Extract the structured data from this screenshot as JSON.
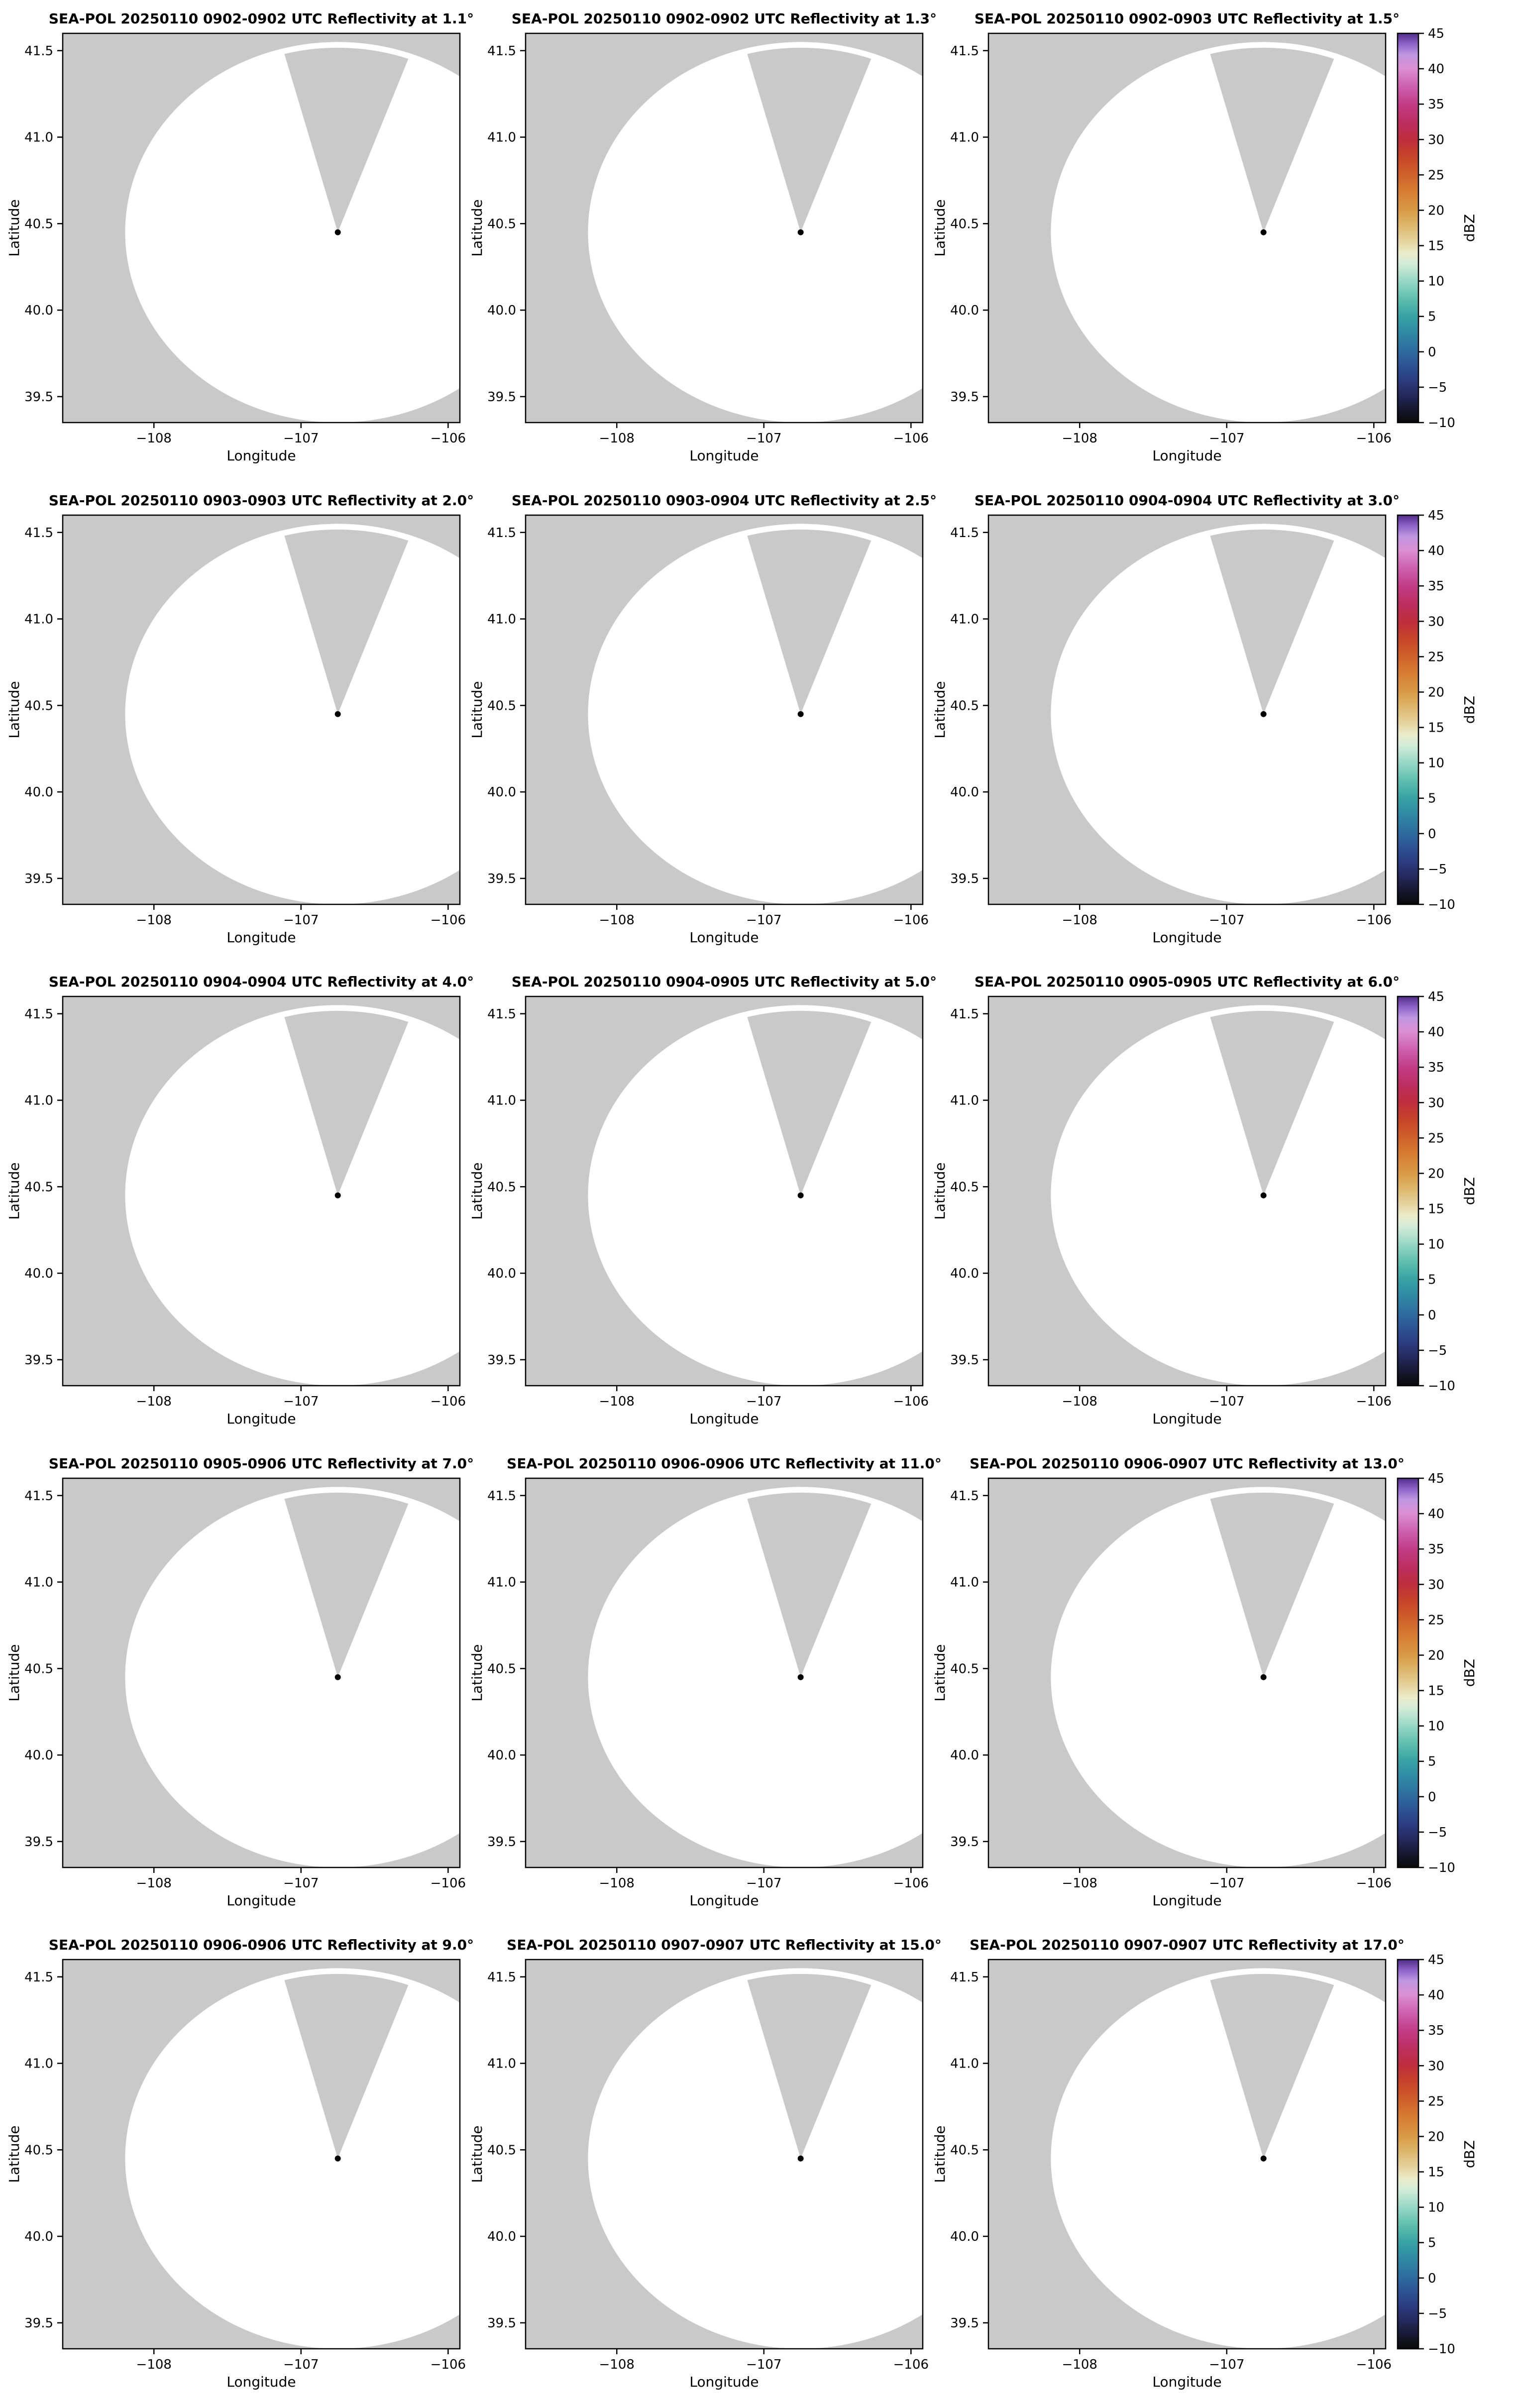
{
  "figure": {
    "background": "#ffffff",
    "outside_scan_color": "#c9c9c9",
    "scan_fill": "#ffffff",
    "blocked_wedge_color": "#c9c9c9",
    "radar_marker_color": "#000000",
    "axis_color": "#000000"
  },
  "chart_data": {
    "type": "heatmap",
    "subtype": "radar-ppi-grid",
    "rows": 5,
    "cols": 3,
    "xlabel": "Longitude",
    "ylabel": "Latitude",
    "x_ticks": [
      -108,
      -107,
      -106
    ],
    "x_tick_labels": [
      "−108",
      "−107",
      "−106"
    ],
    "y_ticks": [
      41.5,
      41.0,
      40.5,
      40.0,
      39.5
    ],
    "y_tick_labels": [
      "41.5",
      "41.0",
      "40.5",
      "40.0",
      "39.5"
    ],
    "xlim": [
      -108.62,
      -105.92
    ],
    "ylim": [
      39.35,
      41.6
    ],
    "radar_location": {
      "lon": -106.75,
      "lat": 40.45
    },
    "scan_radius_deg_lat": 1.1,
    "blocked_sector": {
      "azimuth_start_deg": -15,
      "azimuth_end_deg": 20,
      "radius_fraction": 0.97
    },
    "panels": [
      {
        "title": "SEA-POL 20250110 0902-0902 UTC Reflectivity at 1.1°",
        "time": "0902-0902",
        "elevation": "1.1°"
      },
      {
        "title": "SEA-POL 20250110 0902-0902 UTC Reflectivity at 1.3°",
        "time": "0902-0902",
        "elevation": "1.3°"
      },
      {
        "title": "SEA-POL 20250110 0902-0903 UTC Reflectivity at 1.5°",
        "time": "0902-0903",
        "elevation": "1.5°"
      },
      {
        "title": "SEA-POL 20250110 0903-0903 UTC Reflectivity at 2.0°",
        "time": "0903-0903",
        "elevation": "2.0°"
      },
      {
        "title": "SEA-POL 20250110 0903-0904 UTC Reflectivity at 2.5°",
        "time": "0903-0904",
        "elevation": "2.5°"
      },
      {
        "title": "SEA-POL 20250110 0904-0904 UTC Reflectivity at 3.0°",
        "time": "0904-0904",
        "elevation": "3.0°"
      },
      {
        "title": "SEA-POL 20250110 0904-0904 UTC Reflectivity at 4.0°",
        "time": "0904-0904",
        "elevation": "4.0°"
      },
      {
        "title": "SEA-POL 20250110 0904-0905 UTC Reflectivity at 5.0°",
        "time": "0904-0905",
        "elevation": "5.0°"
      },
      {
        "title": "SEA-POL 20250110 0905-0905 UTC Reflectivity at 6.0°",
        "time": "0905-0905",
        "elevation": "6.0°"
      },
      {
        "title": "SEA-POL 20250110 0905-0906 UTC Reflectivity at 7.0°",
        "time": "0905-0906",
        "elevation": "7.0°"
      },
      {
        "title": "SEA-POL 20250110 0906-0906 UTC Reflectivity at 11.0°",
        "time": "0906-0906",
        "elevation": "11.0°"
      },
      {
        "title": "SEA-POL 20250110 0906-0907 UTC Reflectivity at 13.0°",
        "time": "0906-0907",
        "elevation": "13.0°"
      },
      {
        "title": "SEA-POL 20250110 0906-0906 UTC Reflectivity at 9.0°",
        "time": "0906-0906",
        "elevation": "9.0°"
      },
      {
        "title": "SEA-POL 20250110 0907-0907 UTC Reflectivity at 15.0°",
        "time": "0907-0907",
        "elevation": "15.0°"
      },
      {
        "title": "SEA-POL 20250110 0907-0907 UTC Reflectivity at 17.0°",
        "time": "0907-0907",
        "elevation": "17.0°"
      }
    ],
    "colorbar": {
      "label": "dBZ",
      "vmin": -10,
      "vmax": 45,
      "ticks": [
        -10,
        -5,
        0,
        5,
        10,
        15,
        20,
        25,
        30,
        35,
        40,
        45
      ],
      "tick_labels": [
        "−10",
        "−5",
        "0",
        "5",
        "10",
        "15",
        "20",
        "25",
        "30",
        "35",
        "40",
        "45"
      ],
      "colormap_stops": [
        {
          "value": -10,
          "color": "#0a0a0a"
        },
        {
          "value": -8,
          "color": "#181832"
        },
        {
          "value": -6,
          "color": "#252a5e"
        },
        {
          "value": -4,
          "color": "#2b3c80"
        },
        {
          "value": -2,
          "color": "#2d5294"
        },
        {
          "value": 0,
          "color": "#2e6a9e"
        },
        {
          "value": 2.5,
          "color": "#2f87a4"
        },
        {
          "value": 5,
          "color": "#37a2a4"
        },
        {
          "value": 7.5,
          "color": "#5fbfae"
        },
        {
          "value": 10,
          "color": "#97d7c6"
        },
        {
          "value": 12.5,
          "color": "#d3ecd8"
        },
        {
          "value": 14,
          "color": "#ebecc9"
        },
        {
          "value": 15.5,
          "color": "#e5d5a2"
        },
        {
          "value": 18,
          "color": "#ddb569"
        },
        {
          "value": 20,
          "color": "#d99a45"
        },
        {
          "value": 22.5,
          "color": "#d77f33"
        },
        {
          "value": 25,
          "color": "#d0612b"
        },
        {
          "value": 27.5,
          "color": "#c74529"
        },
        {
          "value": 30,
          "color": "#bf2d3c"
        },
        {
          "value": 32.5,
          "color": "#bc2f60"
        },
        {
          "value": 35,
          "color": "#c23c87"
        },
        {
          "value": 37.5,
          "color": "#cd60af"
        },
        {
          "value": 40,
          "color": "#dc8fd2"
        },
        {
          "value": 42,
          "color": "#bf97e2"
        },
        {
          "value": 43.5,
          "color": "#8f62c8"
        },
        {
          "value": 45,
          "color": "#502d8a"
        }
      ]
    }
  }
}
